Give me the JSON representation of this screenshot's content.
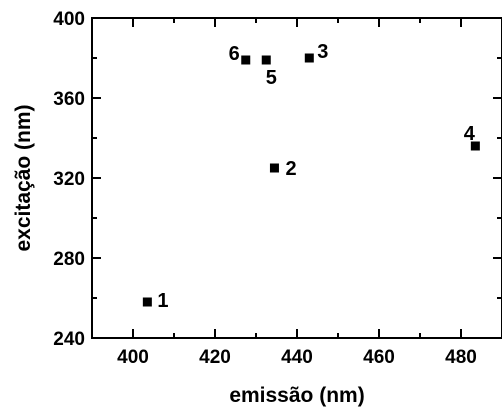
{
  "chart_data": {
    "type": "scatter",
    "title": "",
    "xlabel": "emissão (nm)",
    "ylabel": "excitação (nm)",
    "xlim": [
      390,
      490
    ],
    "ylim": [
      240,
      400
    ],
    "xticks": [
      400,
      420,
      440,
      460,
      480
    ],
    "yticks": [
      240,
      280,
      320,
      360,
      400
    ],
    "grid": false,
    "legend": "none",
    "marker": "square",
    "marker_color": "#000000",
    "points": [
      {
        "label": "1",
        "x": 403.5,
        "y": 258
      },
      {
        "label": "2",
        "x": 434.5,
        "y": 325
      },
      {
        "label": "3",
        "x": 443,
        "y": 380
      },
      {
        "label": "4",
        "x": 483.5,
        "y": 336
      },
      {
        "label": "5",
        "x": 432.5,
        "y": 379
      },
      {
        "label": "6",
        "x": 427.5,
        "y": 379
      }
    ]
  }
}
